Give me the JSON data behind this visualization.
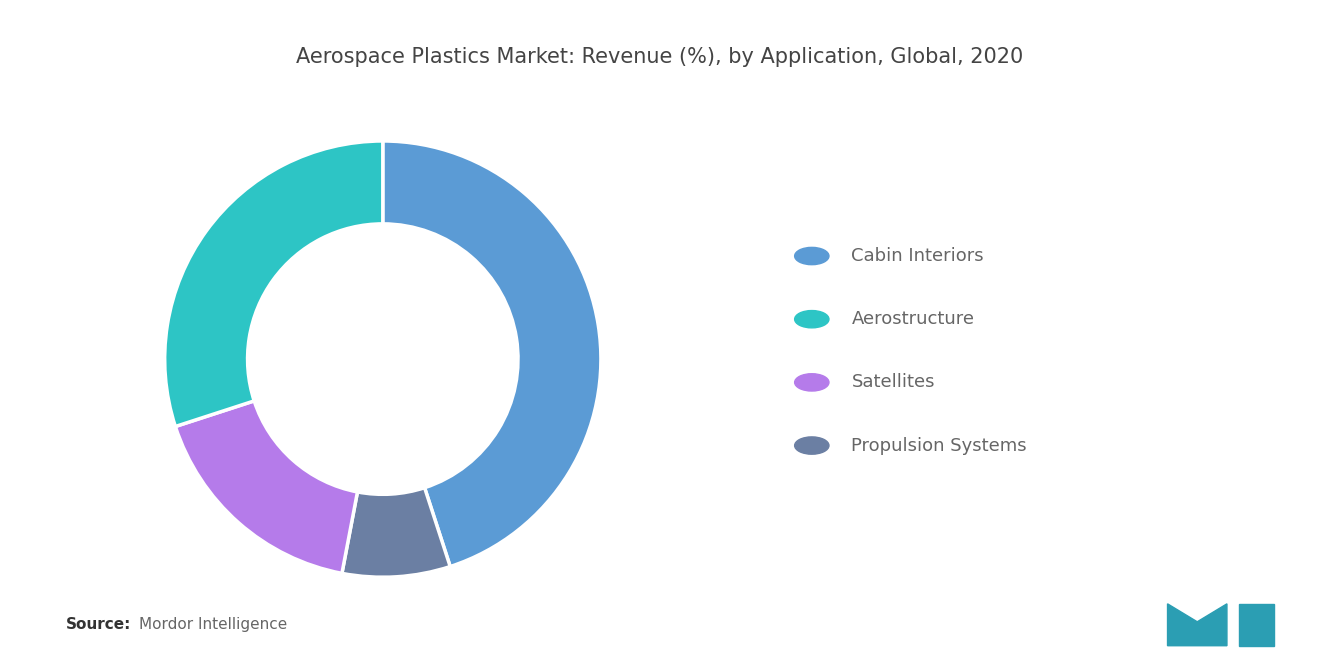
{
  "title": "Aerospace Plastics Market: Revenue (%), by Application, Global, 2020",
  "title_fontsize": 15,
  "title_color": "#444444",
  "labels": [
    "Cabin Interiors",
    "Propulsion Systems",
    "Satellites",
    "Aerostructure"
  ],
  "values": [
    45,
    8,
    17,
    30
  ],
  "colors": [
    "#5B9BD5",
    "#6B7FA3",
    "#B57BEA",
    "#2DC5C5"
  ],
  "legend_labels": [
    "Cabin Interiors",
    "Aerostructure",
    "Satellites",
    "Propulsion Systems"
  ],
  "legend_colors": [
    "#5B9BD5",
    "#2DC5C5",
    "#B57BEA",
    "#6B7FA3"
  ],
  "source_bold": "Source:",
  "source_normal": "  Mordor Intelligence",
  "source_fontsize": 11,
  "background_color": "#ffffff",
  "donut_width": 0.38,
  "startangle": 90,
  "legend_fontsize": 13,
  "legend_text_color": "#666666"
}
